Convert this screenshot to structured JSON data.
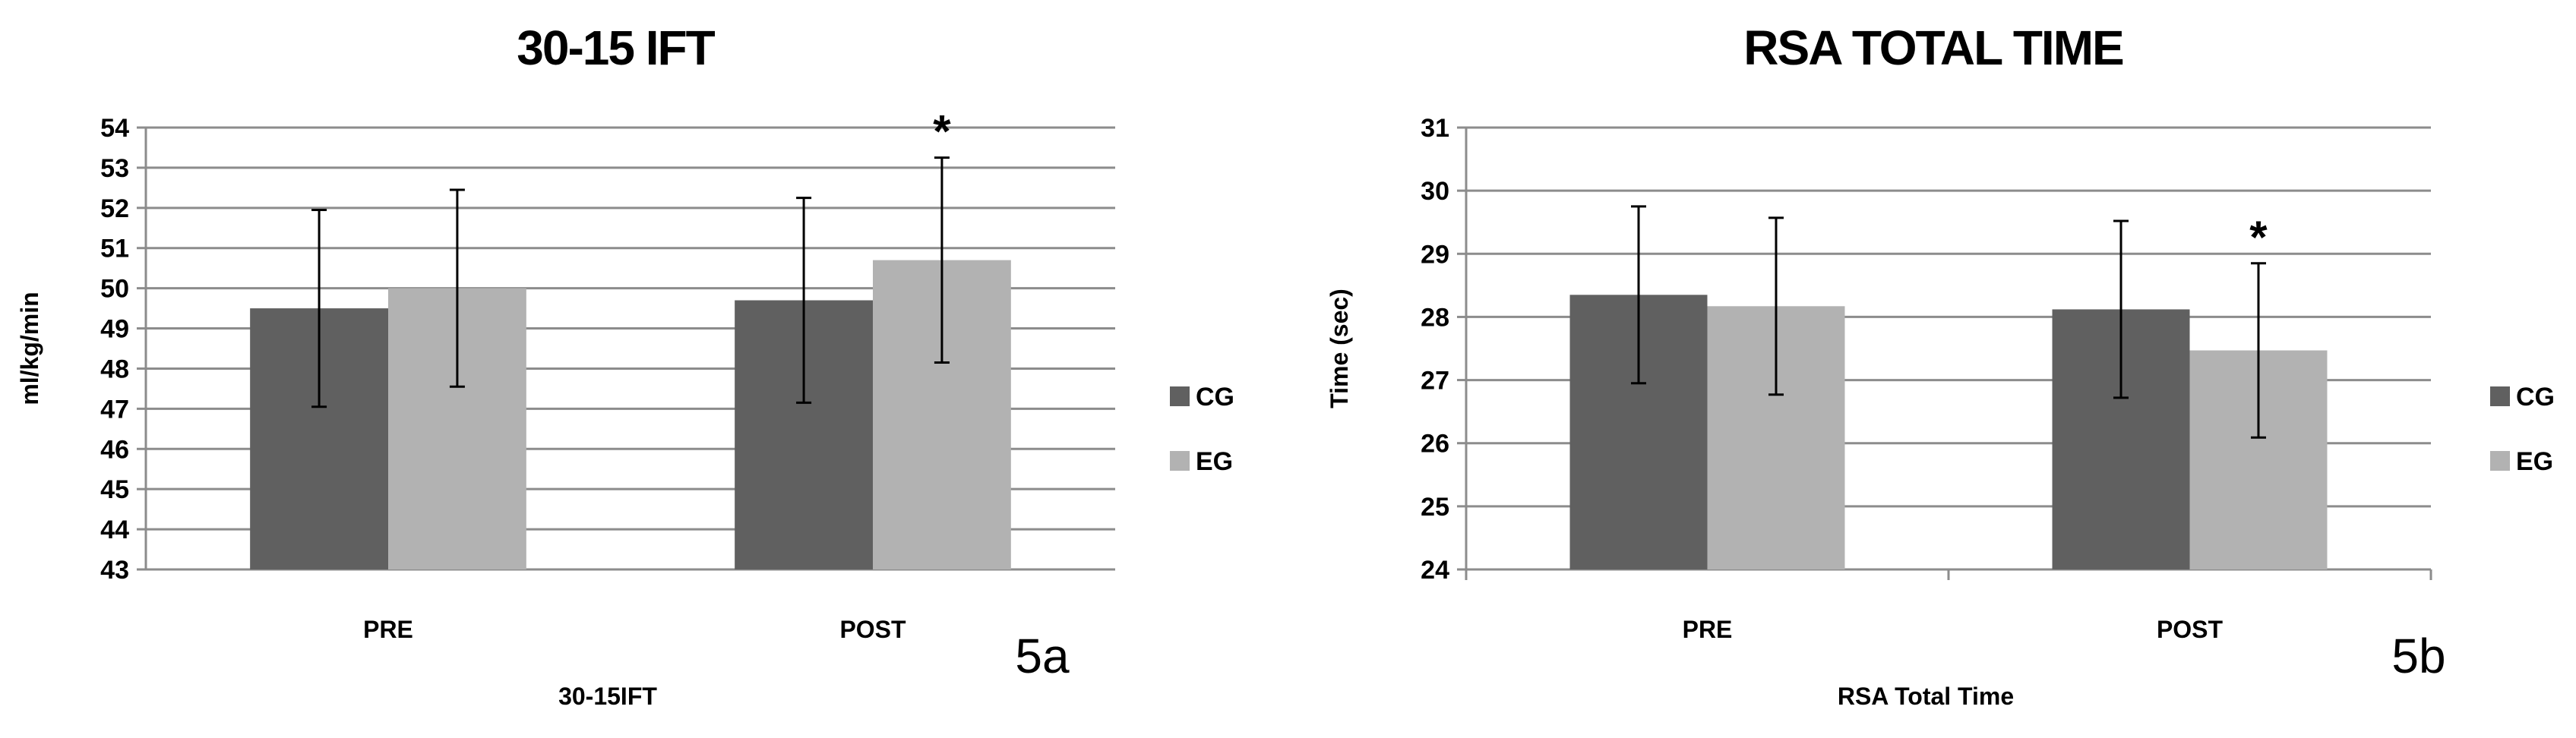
{
  "colors": {
    "CG": "#606060",
    "EG": "#b2b2b2",
    "grid": "#8c8c8c",
    "error_bar": "#000000"
  },
  "chart_data": [
    {
      "type": "bar",
      "title": "30-15 IFT",
      "xlabel": "30-15IFT",
      "ylabel": "ml/kg/min",
      "panel_label": "5a",
      "categories": [
        "PRE",
        "POST"
      ],
      "ylim": [
        43,
        54
      ],
      "yticks": [
        43,
        44,
        45,
        46,
        47,
        48,
        49,
        50,
        51,
        52,
        53,
        54
      ],
      "grid": true,
      "legend_position": "right",
      "series": [
        {
          "name": "CG",
          "values": [
            49.5,
            49.7
          ],
          "error": [
            2.45,
            2.55
          ]
        },
        {
          "name": "EG",
          "values": [
            50.0,
            50.7
          ],
          "error": [
            2.45,
            2.55
          ]
        }
      ],
      "annotations": [
        {
          "text": "*",
          "category": "POST",
          "series": "EG"
        }
      ]
    },
    {
      "type": "bar",
      "title": "RSA TOTAL TIME",
      "xlabel": "RSA Total Time",
      "ylabel": "Time (sec)",
      "panel_label": "5b",
      "categories": [
        "PRE",
        "POST"
      ],
      "ylim": [
        24,
        31
      ],
      "yticks": [
        24,
        25,
        26,
        27,
        28,
        29,
        30,
        31
      ],
      "grid": true,
      "legend_position": "right",
      "series": [
        {
          "name": "CG",
          "values": [
            28.35,
            28.12
          ],
          "error": [
            1.4,
            1.4
          ]
        },
        {
          "name": "EG",
          "values": [
            28.17,
            27.47
          ],
          "error": [
            1.4,
            1.38
          ]
        }
      ],
      "annotations": [
        {
          "text": "*",
          "category": "POST",
          "series": "EG"
        }
      ]
    }
  ]
}
